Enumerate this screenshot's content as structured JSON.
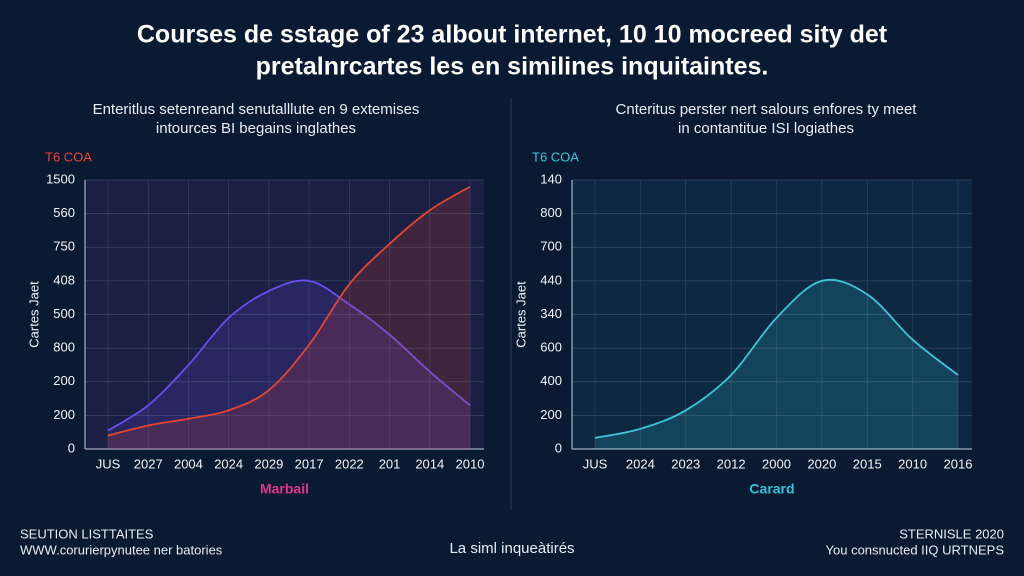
{
  "title": [
    "Courses de sstage of 23 albout internet, 10 10 mocreed sity det",
    "pretalnrcartes les en similines inquitaintes."
  ],
  "footer": {
    "left": [
      "SEUTION LISTTAITES",
      "WWW.corurierpynutee ner batories"
    ],
    "center": "La siml inqueàtirés",
    "right": [
      "STERNISLE 2020",
      "You consnucted IIQ URTNEPS"
    ]
  },
  "chart_data": [
    {
      "type": "line",
      "subtitle": [
        "Enteritlus setenreand senutalllute en 9 extemises",
        "intources BI begains inglathes"
      ],
      "corner_label": "T6 COA",
      "corner_color": "#e8443a",
      "ylabel": "Cartes Jaet",
      "xlabel": "Marbail",
      "xlabel_color": "#e0338a",
      "categories": [
        "JUS",
        "2027",
        "2004",
        "2024",
        "2029",
        "2017",
        "2022",
        "201",
        "2014",
        "2010"
      ],
      "ylim": [
        0,
        8
      ],
      "yticks": [
        {
          "value": 0,
          "label": "0"
        },
        {
          "value": 1,
          "label": "200"
        },
        {
          "value": 2,
          "label": "200"
        },
        {
          "value": 3,
          "label": "800"
        },
        {
          "value": 4,
          "label": "500"
        },
        {
          "value": 5,
          "label": "408"
        },
        {
          "value": 6,
          "label": "750"
        },
        {
          "value": 7,
          "label": "560"
        },
        {
          "value": 8,
          "label": "1500"
        }
      ],
      "grid": true,
      "plot_background": "#2a2450",
      "series": [
        {
          "color": "#6a4cf0",
          "values": [
            0.55,
            1.3,
            2.5,
            3.9,
            4.7,
            5.0,
            4.3,
            3.4,
            2.3,
            1.3
          ]
        },
        {
          "color": "#e5452f",
          "values": [
            0.4,
            0.7,
            0.9,
            1.15,
            1.75,
            3.1,
            4.9,
            6.1,
            7.1,
            7.8
          ]
        }
      ]
    },
    {
      "type": "line",
      "subtitle": [
        "Cnteritus perster nert salours enfores ty meet",
        "in contantitue ISI logiathes"
      ],
      "corner_label": "T6 COA",
      "corner_color": "#3ec6d8",
      "ylabel": "Cartes Jaet",
      "xlabel": "Carard",
      "xlabel_color": "#2ec3d6",
      "categories": [
        "JUS",
        "2024",
        "2023",
        "2012",
        "2000",
        "2020",
        "2015",
        "2010",
        "2016"
      ],
      "ylim": [
        0,
        8
      ],
      "yticks": [
        {
          "value": 0,
          "label": "0"
        },
        {
          "value": 1,
          "label": "200"
        },
        {
          "value": 2,
          "label": "400"
        },
        {
          "value": 3,
          "label": "600"
        },
        {
          "value": 4,
          "label": "340"
        },
        {
          "value": 5,
          "label": "440"
        },
        {
          "value": 6,
          "label": "700"
        },
        {
          "value": 7,
          "label": "800"
        },
        {
          "value": 8,
          "label": "140"
        }
      ],
      "grid": true,
      "plot_background": "#0f3550",
      "series": [
        {
          "color": "#3ec6d8",
          "values": [
            0.33,
            0.6,
            1.15,
            2.2,
            3.9,
            5.0,
            4.6,
            3.25,
            2.2
          ]
        }
      ]
    }
  ]
}
